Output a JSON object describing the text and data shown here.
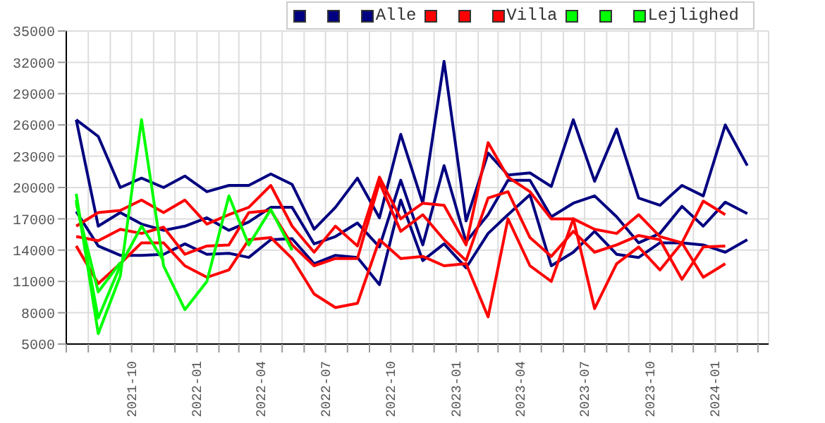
{
  "chart_data": {
    "type": "line",
    "x": [
      "2021-07-15",
      "2021-08-15",
      "2021-09-15",
      "2021-10-15",
      "2021-11-15",
      "2021-12-15",
      "2022-01-15",
      "2022-02-15",
      "2022-03-15",
      "2022-04-15",
      "2022-05-15",
      "2022-06-15",
      "2022-07-15",
      "2022-08-15",
      "2022-09-15",
      "2022-10-15",
      "2022-11-15",
      "2022-12-15",
      "2023-01-15",
      "2023-02-15",
      "2023-03-15",
      "2023-04-15",
      "2023-05-15",
      "2023-06-15",
      "2023-07-15",
      "2023-08-15",
      "2023-09-15",
      "2023-10-15",
      "2023-11-15",
      "2023-12-15",
      "2024-01-15",
      "2024-02-15"
    ],
    "series": [
      {
        "color": "#000080",
        "values": [
          26500,
          24900,
          20000,
          20900,
          20000,
          21100,
          19600,
          20200,
          20200,
          21300,
          20300,
          16000,
          18100,
          20900,
          17100,
          25100,
          18500,
          32100,
          16800,
          23300,
          21200,
          21400,
          20100,
          26500,
          20600,
          25600,
          19000,
          18300,
          20200,
          19200,
          26000,
          22100
        ]
      },
      {
        "color": "#000080",
        "values": [
          26500,
          16300,
          17600,
          16500,
          15900,
          16300,
          17100,
          15900,
          16700,
          18100,
          18100,
          14600,
          15300,
          16600,
          14300,
          20700,
          14500,
          22100,
          14800,
          17400,
          20700,
          20700,
          17200,
          18500,
          19200,
          17200,
          14700,
          15600,
          18200,
          16300,
          18600,
          17500
        ]
      },
      {
        "name": "Alle",
        "color": "#000080",
        "values": [
          17700,
          14400,
          13500,
          13500,
          13600,
          14600,
          13600,
          13700,
          13300,
          15000,
          15100,
          12700,
          13500,
          13300,
          10700,
          18800,
          13000,
          14600,
          12300,
          15600,
          17400,
          19300,
          12500,
          13800,
          15800,
          13600,
          13300,
          14700,
          14700,
          14500,
          13800,
          15000
        ]
      },
      {
        "color": "#ff0000",
        "values": [
          16300,
          17600,
          17800,
          18800,
          17600,
          18800,
          16500,
          17400,
          18100,
          20200,
          16300,
          13800,
          16300,
          14400,
          21000,
          17000,
          18500,
          18300,
          14500,
          24300,
          21000,
          19600,
          17000,
          17000,
          16000,
          15600,
          17400,
          15300,
          14700,
          18700,
          17400,
          null
        ]
      },
      {
        "color": "#ff0000",
        "values": [
          15300,
          14900,
          16000,
          15600,
          16200,
          13600,
          14400,
          14500,
          17600,
          17800,
          14500,
          12500,
          13200,
          13200,
          20500,
          15800,
          17400,
          15000,
          13000,
          19000,
          19600,
          15200,
          13400,
          15800,
          13800,
          14500,
          15400,
          15000,
          11200,
          14300,
          14400,
          null
        ]
      },
      {
        "name": "Villa",
        "color": "#ff0000",
        "values": [
          14400,
          10800,
          12700,
          14700,
          14700,
          12500,
          11400,
          12100,
          15000,
          15200,
          13200,
          9800,
          8500,
          8900,
          15000,
          13200,
          13400,
          12500,
          12700,
          7600,
          17000,
          12500,
          11000,
          17000,
          8400,
          12700,
          14300,
          12100,
          14700,
          11400,
          12700,
          null
        ]
      },
      {
        "color": "#00ff00",
        "values": [
          19400,
          6000,
          11500,
          26500,
          12500,
          8300,
          11000,
          19200,
          14500,
          17900,
          14000,
          null,
          null,
          null,
          null,
          null,
          null,
          null,
          null,
          null,
          null,
          null,
          null,
          null,
          null,
          null,
          null,
          null,
          null,
          null,
          null,
          null
        ]
      },
      {
        "color": "#00ff00",
        "values": [
          18800,
          7500,
          12500,
          16300,
          13000,
          null,
          null,
          null,
          null,
          null,
          null,
          null,
          null,
          null,
          null,
          null,
          null,
          null,
          null,
          null,
          null,
          null,
          null,
          null,
          null,
          null,
          null,
          null,
          null,
          null,
          null,
          null
        ]
      },
      {
        "name": "Lejlighed",
        "color": "#00ff00",
        "values": [
          18500,
          10000,
          12800,
          null,
          null,
          null,
          null,
          null,
          null,
          null,
          null,
          null,
          null,
          null,
          null,
          null,
          null,
          null,
          null,
          null,
          null,
          null,
          null,
          null,
          null,
          null,
          null,
          null,
          null,
          null,
          null,
          null
        ]
      }
    ],
    "xlim": [
      "2021-07-01",
      "2024-03-16"
    ],
    "xticks": [
      {
        "value": "2021-07",
        "label": null
      },
      {
        "value": "2021-08",
        "label": null
      },
      {
        "value": "2021-09",
        "label": null
      },
      "2021-10",
      {
        "value": "2021-11",
        "label": null
      },
      {
        "value": "2021-12",
        "label": null
      },
      "2022-01",
      {
        "value": "2022-02",
        "label": null
      },
      {
        "value": "2022-03",
        "label": null
      },
      "2022-04",
      {
        "value": "2022-05",
        "label": null
      },
      {
        "value": "2022-06",
        "label": null
      },
      "2022-07",
      {
        "value": "2022-08",
        "label": null
      },
      {
        "value": "2022-09",
        "label": null
      },
      "2022-10",
      {
        "value": "2022-11",
        "label": null
      },
      {
        "value": "2022-12",
        "label": null
      },
      "2023-01",
      {
        "value": "2023-02",
        "label": null
      },
      {
        "value": "2023-03",
        "label": null
      },
      "2023-04",
      {
        "value": "2023-05",
        "label": null
      },
      {
        "value": "2023-06",
        "label": null
      },
      "2023-07",
      {
        "value": "2023-08",
        "label": null
      },
      {
        "value": "2023-09",
        "label": null
      },
      "2023-10",
      {
        "value": "2023-11",
        "label": null
      },
      {
        "value": "2023-12",
        "label": null
      },
      "2024-01",
      {
        "value": "2024-02",
        "label": null
      },
      {
        "value": "2024-03",
        "label": null
      }
    ],
    "ylim": [
      5000,
      35000
    ],
    "yticks": [
      5000,
      8000,
      11000,
      14000,
      17000,
      20000,
      23000,
      26000,
      29000,
      32000,
      35000
    ],
    "grid": true,
    "legend": "top right",
    "marker": "none",
    "line_style": "solid"
  }
}
